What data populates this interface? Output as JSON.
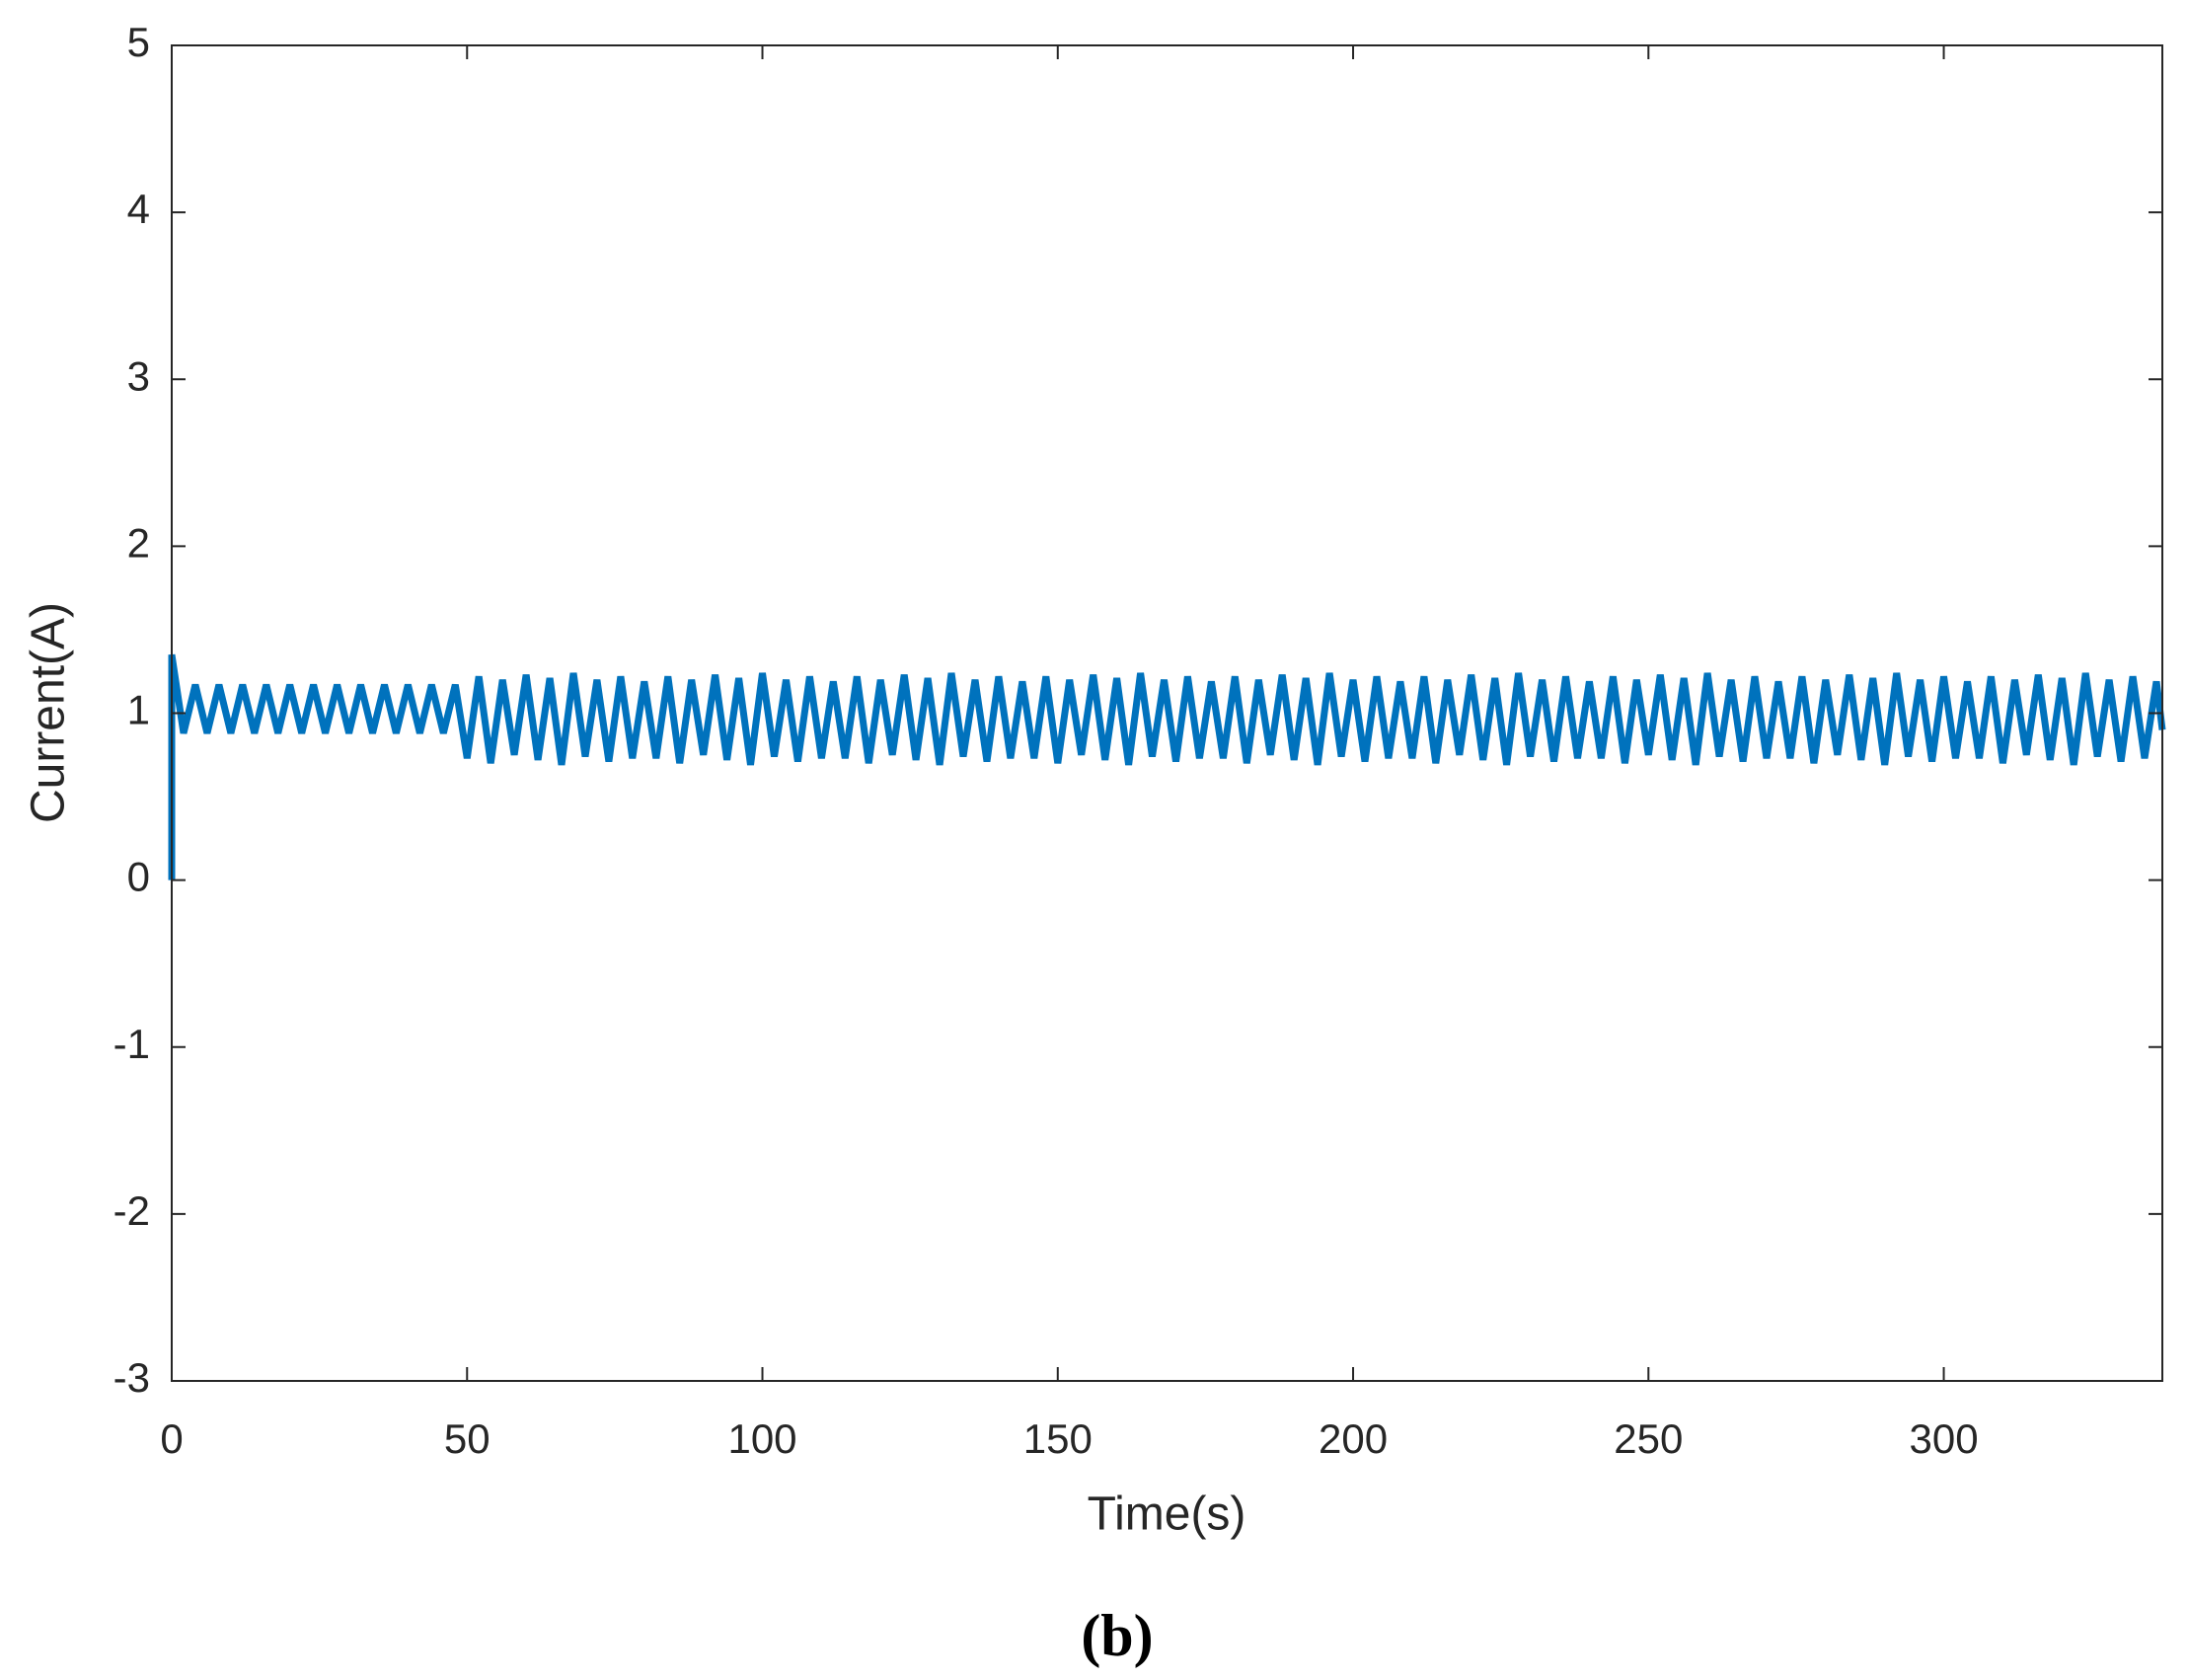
{
  "chart_data": {
    "type": "line",
    "xlabel": "Time(s)",
    "ylabel": "Current(A)",
    "caption": "(b)",
    "color": "#0072bd",
    "xlim": [
      0,
      337
    ],
    "ylim": [
      -3,
      5
    ],
    "xticks": [
      0,
      50,
      100,
      150,
      200,
      250,
      300
    ],
    "yticks": [
      -3,
      -2,
      -1,
      0,
      1,
      2,
      3,
      4,
      5
    ],
    "x": [
      0,
      0,
      2,
      4,
      6,
      8,
      10,
      12,
      14,
      16,
      18,
      20,
      22,
      24,
      26,
      28,
      30,
      32,
      34,
      36,
      38,
      40,
      42,
      44,
      46,
      48,
      50,
      52,
      54,
      56,
      58,
      60,
      62,
      64,
      66,
      68,
      70,
      72,
      74,
      76,
      78,
      80,
      82,
      84,
      86,
      88,
      90,
      92,
      94,
      96,
      98,
      100,
      102,
      104,
      106,
      108,
      110,
      112,
      114,
      116,
      118,
      120,
      122,
      124,
      126,
      128,
      130,
      132,
      134,
      136,
      138,
      140,
      142,
      144,
      146,
      148,
      150,
      152,
      154,
      156,
      158,
      160,
      162,
      164,
      166,
      168,
      170,
      172,
      174,
      176,
      178,
      180,
      182,
      184,
      186,
      188,
      190,
      192,
      194,
      196,
      198,
      200,
      202,
      204,
      206,
      208,
      210,
      212,
      214,
      216,
      218,
      220,
      222,
      224,
      226,
      228,
      230,
      232,
      234,
      236,
      238,
      240,
      242,
      244,
      246,
      248,
      250,
      252,
      254,
      256,
      258,
      260,
      262,
      264,
      266,
      268,
      270,
      272,
      274,
      276,
      278,
      280,
      282,
      284,
      286,
      288,
      290,
      292,
      294,
      296,
      298,
      300,
      302,
      304,
      306,
      308,
      310,
      312,
      314,
      316,
      318,
      320,
      322,
      324,
      326,
      328,
      330,
      332,
      334,
      336,
      337
    ],
    "values": [
      0,
      1.35,
      0.88,
      1.17,
      0.88,
      1.17,
      0.88,
      1.17,
      0.88,
      1.17,
      0.88,
      1.17,
      0.88,
      1.17,
      0.88,
      1.17,
      0.88,
      1.17,
      0.88,
      1.17,
      0.88,
      1.17,
      0.88,
      1.17,
      0.88,
      1.17,
      0.73,
      1.22,
      0.7,
      1.2,
      0.75,
      1.23,
      0.72,
      1.21,
      0.69,
      1.24,
      0.74,
      1.2,
      0.71,
      1.22,
      0.73,
      1.19,
      0.73,
      1.22,
      0.7,
      1.2,
      0.75,
      1.23,
      0.72,
      1.21,
      0.69,
      1.24,
      0.74,
      1.2,
      0.71,
      1.22,
      0.73,
      1.19,
      0.73,
      1.22,
      0.7,
      1.2,
      0.75,
      1.23,
      0.72,
      1.21,
      0.69,
      1.24,
      0.74,
      1.2,
      0.71,
      1.22,
      0.73,
      1.19,
      0.73,
      1.22,
      0.7,
      1.2,
      0.75,
      1.23,
      0.72,
      1.21,
      0.69,
      1.24,
      0.74,
      1.2,
      0.71,
      1.22,
      0.73,
      1.19,
      0.73,
      1.22,
      0.7,
      1.2,
      0.75,
      1.23,
      0.72,
      1.21,
      0.69,
      1.24,
      0.74,
      1.2,
      0.71,
      1.22,
      0.73,
      1.19,
      0.73,
      1.22,
      0.7,
      1.2,
      0.75,
      1.23,
      0.72,
      1.21,
      0.69,
      1.24,
      0.74,
      1.2,
      0.71,
      1.22,
      0.73,
      1.19,
      0.73,
      1.22,
      0.7,
      1.2,
      0.75,
      1.23,
      0.72,
      1.21,
      0.69,
      1.24,
      0.74,
      1.2,
      0.71,
      1.22,
      0.73,
      1.19,
      0.73,
      1.22,
      0.7,
      1.2,
      0.75,
      1.23,
      0.72,
      1.21,
      0.69,
      1.24,
      0.74,
      1.2,
      0.71,
      1.22,
      0.73,
      1.19,
      0.73,
      1.22,
      0.7,
      1.2,
      0.75,
      1.23,
      0.72,
      1.21,
      0.69,
      1.24,
      0.74,
      1.2,
      0.71,
      1.22,
      0.73,
      1.19,
      0.9
    ]
  }
}
